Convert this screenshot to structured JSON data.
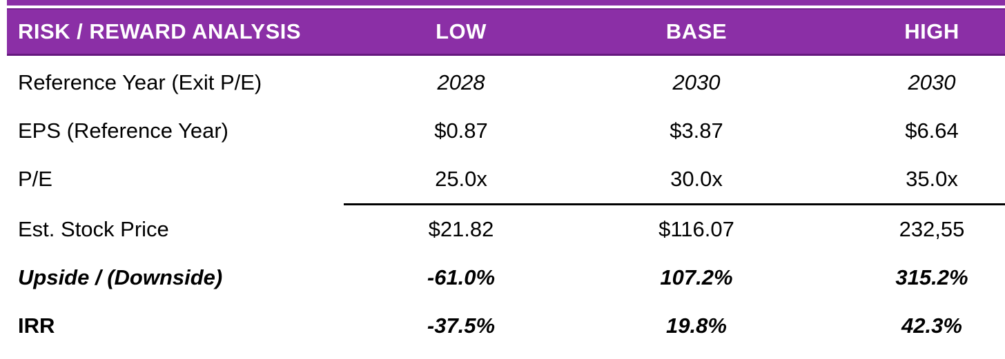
{
  "header": {
    "title": "RISK / REWARD ANALYSIS",
    "columns": [
      "LOW",
      "BASE",
      "HIGH"
    ]
  },
  "rows": [
    {
      "label": "Reference Year (Exit P/E)",
      "label_style": "regular",
      "value_style": "italic",
      "divider_above": false,
      "values": [
        "2028",
        "2030",
        "2030"
      ]
    },
    {
      "label": "EPS (Reference Year)",
      "label_style": "regular",
      "value_style": "regular",
      "divider_above": false,
      "values": [
        "$0.87",
        "$3.87",
        "$6.64"
      ]
    },
    {
      "label": "P/E",
      "label_style": "regular",
      "value_style": "regular",
      "divider_above": false,
      "values": [
        "25.0x",
        "30.0x",
        "35.0x"
      ]
    },
    {
      "label": "Est. Stock Price",
      "label_style": "regular",
      "value_style": "regular",
      "divider_above": true,
      "values": [
        "$21.82",
        "$116.07",
        "232,55"
      ]
    },
    {
      "label": "Upside / (Downside)",
      "label_style": "bold-italic",
      "value_style": "bold-italic",
      "divider_above": false,
      "values": [
        "-61.0%",
        "107.2%",
        "315.2%"
      ]
    },
    {
      "label": "IRR",
      "label_style": "bold",
      "value_style": "bold-italic",
      "divider_above": false,
      "values": [
        "-37.5%",
        "19.8%",
        "42.3%"
      ]
    }
  ],
  "colors": {
    "accent": "#8B2FA6",
    "accent_dark": "#65187E",
    "header_text": "#FFFFFF",
    "body_text": "#000000",
    "divider": "#000000",
    "background": "#FFFFFF"
  }
}
